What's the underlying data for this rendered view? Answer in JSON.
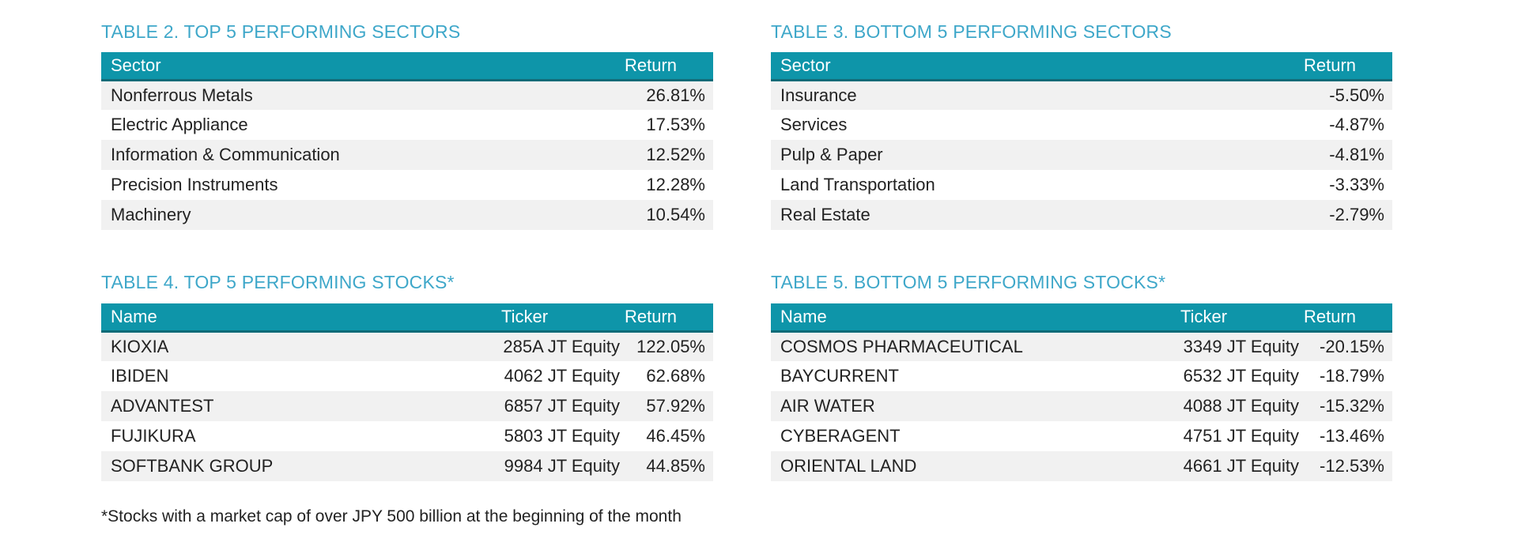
{
  "colors": {
    "header_bg": "#0E95A9",
    "header_border": "#0F6B78",
    "title": "#3EA7C9",
    "stripe": "#F1F1F1",
    "text": "#222222",
    "header_text": "#FFFFFF"
  },
  "tables": [
    {
      "title": "TABLE 2. TOP 5 PERFORMING SECTORS",
      "headers": [
        "Sector",
        "Return"
      ],
      "rows": [
        [
          "Nonferrous Metals",
          "26.81%"
        ],
        [
          "Electric Appliance",
          "17.53%"
        ],
        [
          "Information & Communication",
          "12.52%"
        ],
        [
          "Precision Instruments",
          "12.28%"
        ],
        [
          "Machinery",
          "10.54%"
        ]
      ]
    },
    {
      "title": "TABLE 3. BOTTOM 5 PERFORMING SECTORS",
      "headers": [
        "Sector",
        "Return"
      ],
      "rows": [
        [
          "Insurance",
          "-5.50%"
        ],
        [
          "Services",
          "-4.87%"
        ],
        [
          "Pulp & Paper",
          "-4.81%"
        ],
        [
          "Land Transportation",
          "-3.33%"
        ],
        [
          "Real Estate",
          "-2.79%"
        ]
      ]
    },
    {
      "title": "TABLE 4. TOP 5 PERFORMING STOCKS*",
      "headers": [
        "Name",
        "Ticker",
        "Return"
      ],
      "rows": [
        [
          "KIOXIA",
          "285A JT Equity",
          "122.05%"
        ],
        [
          "IBIDEN",
          "4062 JT Equity",
          "62.68%"
        ],
        [
          "ADVANTEST",
          "6857 JT Equity",
          "57.92%"
        ],
        [
          "FUJIKURA",
          "5803 JT Equity",
          "46.45%"
        ],
        [
          "SOFTBANK GROUP",
          "9984 JT Equity",
          "44.85%"
        ]
      ]
    },
    {
      "title": "TABLE 5. BOTTOM 5 PERFORMING STOCKS*",
      "headers": [
        "Name",
        "Ticker",
        "Return"
      ],
      "rows": [
        [
          "COSMOS PHARMACEUTICAL",
          "3349 JT Equity",
          "-20.15%"
        ],
        [
          "BAYCURRENT",
          "6532 JT Equity",
          "-18.79%"
        ],
        [
          "AIR WATER",
          "4088 JT Equity",
          "-15.32%"
        ],
        [
          "CYBERAGENT",
          "4751 JT Equity",
          "-13.46%"
        ],
        [
          "ORIENTAL LAND",
          "4661 JT Equity",
          "-12.53%"
        ]
      ]
    }
  ],
  "footnote": "*Stocks with a market cap of over JPY 500 billion at the beginning of the month"
}
